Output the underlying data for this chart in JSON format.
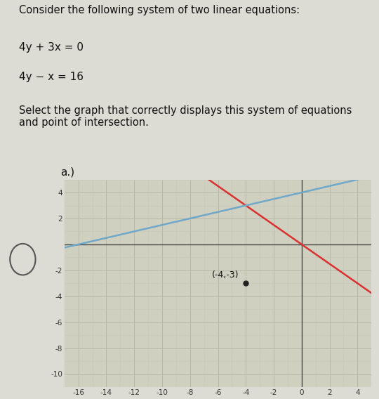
{
  "title_text": "Consider the following system of two linear equations:",
  "eq1": "4y + 3x = 0",
  "eq2": "4y − x = 16",
  "instruction": "Select the graph that correctly displays this system of equations\nand point of intersection.",
  "label": "a.)",
  "intersection": [
    -4,
    -3
  ],
  "intersection_label": "(-4,-3)",
  "xlim": [
    -17,
    5
  ],
  "ylim": [
    -11,
    5
  ],
  "xticks": [
    -16,
    -14,
    -12,
    -10,
    -8,
    -6,
    -4,
    -2,
    0,
    2,
    4
  ],
  "yticks": [
    -10,
    -8,
    -6,
    -4,
    -2,
    0,
    2,
    4
  ],
  "line1_color": "#d93030",
  "line2_color": "#6fa8c8",
  "bg_color": "#d0d0c0",
  "text_bg": "#dcdcd4",
  "grid_major_color": "#b8b8a8",
  "grid_minor_color": "#c8c8b8",
  "axis_color": "#444444",
  "dot_color": "#222222"
}
